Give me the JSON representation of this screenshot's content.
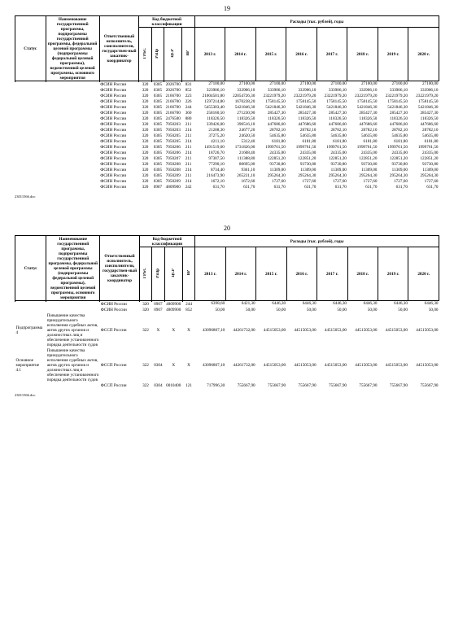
{
  "pages": [
    {
      "number": "19",
      "header": {
        "status": "Статус",
        "name": "Наименование государственной программы, подпрограммы государственной программы, федеральной целевой программы (подпрограммы федеральной целевой программы), ведомственной целевой программы, основного мероприятия",
        "responsible": "Ответственный исполнитель, соисполнители, государствен-ный заказчик-координатор",
        "kbk": "Код бюджетной классификации",
        "grbs": "ГРБС",
        "rzpr": "РзПр",
        "csr": "ЦСР",
        "vr": "ВР",
        "expenses": "Расходы (тыс. рублей), годы",
        "years": [
          "2013 г.",
          "2014 г.",
          "2015 г.",
          "2016 г.",
          "2017 г.",
          "2018 г.",
          "2019 г.",
          "2020 г."
        ]
      },
      "rows": [
        {
          "status": "",
          "name": "",
          "resp": "ФСИН России",
          "grbs": "320",
          "rzpr": "0305",
          "csr": "2026700",
          "vr": "831",
          "y": [
            "27100,00",
            "27100,00",
            "27100,00",
            "27100,00",
            "27100,00",
            "27100,00",
            "27100,00",
            "27100,00"
          ]
        },
        {
          "resp": "ФСИН России",
          "grbs": "320",
          "rzpr": "0305",
          "csr": "2026700",
          "vr": "852",
          "y": [
            "323906,10",
            "333906,10",
            "333906,10",
            "333906,10",
            "333906,10",
            "333906,10",
            "333906,10",
            "333906,10"
          ]
        },
        {
          "resp": "ФСИН России",
          "grbs": "320",
          "rzpr": "0305",
          "csr": "2166700",
          "vr": "223",
          "y": [
            "21004501,80",
            "22054726,30",
            "23221979,20",
            "23221979,20",
            "23221979,20",
            "23221979,20",
            "23221979,20",
            "23221979,20"
          ]
        },
        {
          "resp": "ФСИН России",
          "grbs": "320",
          "rzpr": "0305",
          "csr": "2166700",
          "vr": "226",
          "y": [
            "1597214,80",
            "1670238,20",
            "1758145,50",
            "1758145,50",
            "1758145,50",
            "1758145,50",
            "1758145,50",
            "1758145,50"
          ]
        },
        {
          "resp": "ФСИН России",
          "grbs": "320",
          "rzpr": "0305",
          "csr": "2166700",
          "vr": "244",
          "y": [
            "5455303,40",
            "5421846,30",
            "5421846,30",
            "5421846,30",
            "5421846,30",
            "5421846,30",
            "5421846,30",
            "5421846,30"
          ]
        },
        {
          "resp": "ФСИН России",
          "grbs": "320",
          "rzpr": "0305",
          "csr": "2166700",
          "vr": "360",
          "y": [
            "258160,50",
            "271230,90",
            "285427,30",
            "285427,30",
            "285427,30",
            "285427,30",
            "285427,30",
            "285427,30"
          ]
        },
        {
          "resp": "ФСИН России",
          "grbs": "320",
          "rzpr": "0305",
          "csr": "2476500",
          "vr": "880",
          "y": [
            "118326,50",
            "118326,50",
            "118326,50",
            "118326,50",
            "118326,50",
            "118326,50",
            "118326,50",
            "118326,50"
          ]
        },
        {
          "resp": "ФСИН России",
          "grbs": "320",
          "rzpr": "0305",
          "csr": "7050203",
          "vr": "211",
          "y": [
            "339426,00",
            "390516,10",
            "447686,60",
            "447686,60",
            "447686,60",
            "447686,60",
            "447686,60",
            "447686,60"
          ]
        },
        {
          "resp": "ФСИН России",
          "grbs": "320",
          "rzpr": "0305",
          "csr": "7050203",
          "vr": "214",
          "y": [
            "21208,30",
            "24677,20",
            "28782,10",
            "28782,10",
            "28782,10",
            "28782,10",
            "28782,10",
            "28782,10"
          ]
        },
        {
          "resp": "ФСИН России",
          "grbs": "320",
          "rzpr": "0305",
          "csr": "7050205",
          "vr": "211",
          "y": [
            "37275,20",
            "24620,50",
            "54635,80",
            "54635,80",
            "54635,80",
            "54635,80",
            "54635,80",
            "54635,80"
          ]
        },
        {
          "resp": "ФСИН России",
          "grbs": "320",
          "rzpr": "0305",
          "csr": "7050205",
          "vr": "214",
          "y": [
            "4211,10",
            "5312,40",
            "6181,80",
            "6181,80",
            "6181,80",
            "6181,80",
            "6181,80",
            "6181,80"
          ]
        },
        {
          "resp": "ФСИН России",
          "grbs": "320",
          "rzpr": "0305",
          "csr": "7050206",
          "vr": "211",
          "y": [
            "1491519,60",
            "1731826,00",
            "1999761,50",
            "1999761,50",
            "1999761,50",
            "1999761,50",
            "1999761,50",
            "1999761,50"
          ]
        },
        {
          "resp": "ФСИН России",
          "grbs": "320",
          "rzpr": "0305",
          "csr": "7050206",
          "vr": "214",
          "y": [
            "18726,70",
            "21608,40",
            "24335,00",
            "24335,00",
            "24335,00",
            "24335,00",
            "24335,00",
            "24335,00"
          ]
        },
        {
          "resp": "ФСИН России",
          "grbs": "320",
          "rzpr": "0305",
          "csr": "7050207",
          "vr": "211",
          "y": [
            "97307,50",
            "111388,80",
            "122851,20",
            "122851,20",
            "122851,20",
            "122851,20",
            "122851,20",
            "122851,20"
          ]
        },
        {
          "resp": "ФСИН России",
          "grbs": "320",
          "rzpr": "0305",
          "csr": "7050208",
          "vr": "211",
          "y": [
            "77290,10",
            "80695,00",
            "93730,80",
            "93730,80",
            "93730,80",
            "93730,80",
            "93730,80",
            "93730,80"
          ]
        },
        {
          "resp": "ФСИН России",
          "grbs": "320",
          "rzpr": "0305",
          "csr": "7050208",
          "vr": "214",
          "y": [
            "8734,40",
            "9361,10",
            "11309,00",
            "11309,00",
            "11309,00",
            "11309,00",
            "11309,00",
            "11309,00"
          ]
        },
        {
          "resp": "ФСИН России",
          "grbs": "320",
          "rzpr": "0305",
          "csr": "7050209",
          "vr": "211",
          "y": [
            "216473,90",
            "265231,10",
            "295264,30",
            "295264,30",
            "295264,30",
            "295264,30",
            "295264,30",
            "295264,30"
          ]
        },
        {
          "resp": "ФСИН России",
          "grbs": "320",
          "rzpr": "0305",
          "csr": "7050209",
          "vr": "214",
          "y": [
            "1672,10",
            "1672,60",
            "1727,60",
            "1727,60",
            "1727,60",
            "1727,60",
            "1727,60",
            "1727,60"
          ]
        },
        {
          "resp": "ФСИН России",
          "grbs": "320",
          "rzpr": "0907",
          "csr": "4809900",
          "vr": "242",
          "y": [
            "631,70",
            "631,70",
            "631,70",
            "631,70",
            "631,70",
            "631,70",
            "631,70",
            "631,70"
          ]
        }
      ],
      "footer": "23011566.doc"
    },
    {
      "number": "20",
      "header": {
        "status": "Статус",
        "name": "Наименование государственной программы, подпрограммы государственной программы, федеральной целевой программы (подпрограммы федеральной целевой программы), ведомственной целевой программы, основного мероприятия",
        "responsible": "Ответственный исполнитель, соисполнители, государствен-ный заказчик-координатор",
        "kbk": "Код бюджетной классификации",
        "grbs": "ГРБС",
        "rzpr": "РзПр",
        "csr": "ЦСР",
        "vr": "ВР",
        "expenses": "Расходы (тыс. рублей), годы",
        "years": [
          "2013 г.",
          "2014 г.",
          "2015 г.",
          "2016 г.",
          "2017 г.",
          "2018 г.",
          "2019 г.",
          "2020 г."
        ]
      },
      "rows": [
        {
          "status": "",
          "name": "",
          "resp": "ФСИН России",
          "grbs": "320",
          "rzpr": "0907",
          "csr": "4809900",
          "vr": "244",
          "y": [
            "6398,60",
            "6421,30",
            "6446,30",
            "6446,30",
            "6446,30",
            "6446,30",
            "6446,30",
            "6446,30"
          ]
        },
        {
          "resp": "ФСИН России",
          "grbs": "320",
          "rzpr": "0907",
          "csr": "4809900",
          "vr": "852",
          "y": [
            "50,00",
            "50,00",
            "50,00",
            "50,00",
            "50,00",
            "50,00",
            "50,00",
            "50,00"
          ]
        },
        {
          "status": "Подпрограмма 4",
          "name": "Повышение качества принудительного исполнения судебных актов, актов других органов и должностных лиц и обеспечение установленного порядка деятельности судов",
          "resp": "ФССП России",
          "grbs": "322",
          "rzpr": "X",
          "csr": "X",
          "vr": "X",
          "y": [
            "43096807,10",
            "44261732,00",
            "44515053,00",
            "44515053,00",
            "44515053,00",
            "44515053,00",
            "44515053,00",
            "44515053,00"
          ]
        },
        {
          "status": "Основное мероприятие 4.1",
          "name": "Повышение качества принудительного исполнения судебных актов, актов других органов и должностных лиц и обеспечение установленного порядка деятельности судов",
          "resp": "ФССП России",
          "grbs": "322",
          "rzpr": "0304",
          "csr": "X",
          "vr": "X",
          "y": [
            "43096807,10",
            "44261732,00",
            "44515053,00",
            "44515053,00",
            "44515053,00",
            "44515053,00",
            "44515053,00",
            "44515053,00"
          ]
        },
        {
          "resp": "ФССП России",
          "grbs": "322",
          "rzpr": "0304",
          "csr": "0010400",
          "vr": "121",
          "y": [
            "717996,30",
            "755667,90",
            "755667,90",
            "755667,90",
            "755667,90",
            "755667,90",
            "755667,90",
            "755667,90"
          ]
        }
      ],
      "footer": "23011566.doc"
    }
  ]
}
